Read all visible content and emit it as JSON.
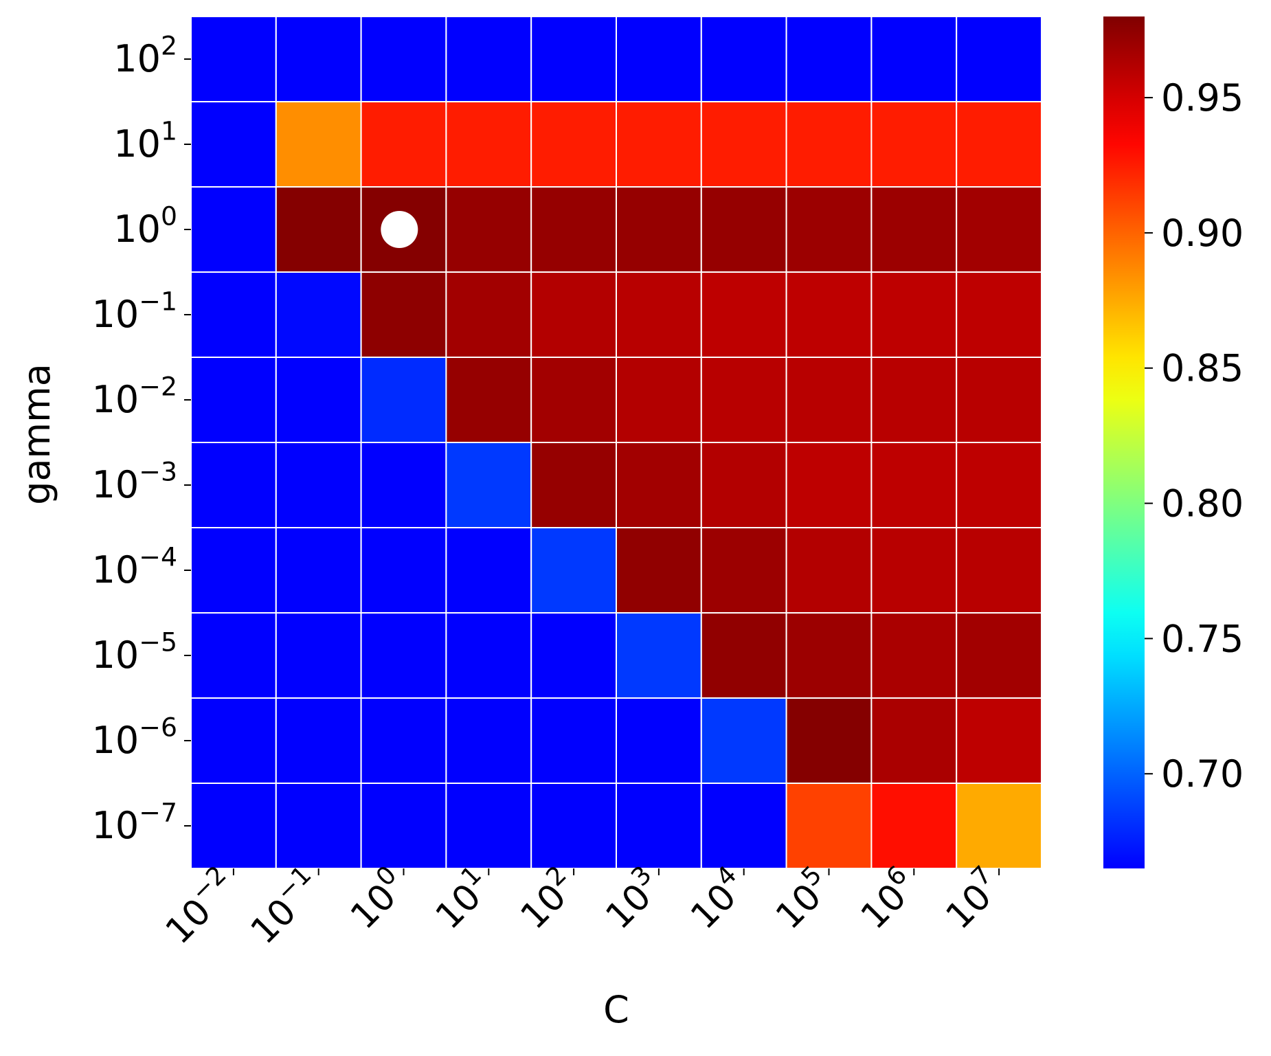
{
  "chart_data": {
    "type": "heatmap",
    "xlabel": "C",
    "ylabel": "gamma",
    "x_categories": [
      {
        "base": "10",
        "exp": "−2"
      },
      {
        "base": "10",
        "exp": "−1"
      },
      {
        "base": "10",
        "exp": "0"
      },
      {
        "base": "10",
        "exp": "1"
      },
      {
        "base": "10",
        "exp": "2"
      },
      {
        "base": "10",
        "exp": "3"
      },
      {
        "base": "10",
        "exp": "4"
      },
      {
        "base": "10",
        "exp": "5"
      },
      {
        "base": "10",
        "exp": "6"
      },
      {
        "base": "10",
        "exp": "7"
      }
    ],
    "y_categories": [
      {
        "base": "10",
        "exp": "2"
      },
      {
        "base": "10",
        "exp": "1"
      },
      {
        "base": "10",
        "exp": "0"
      },
      {
        "base": "10",
        "exp": "−1"
      },
      {
        "base": "10",
        "exp": "−2"
      },
      {
        "base": "10",
        "exp": "−3"
      },
      {
        "base": "10",
        "exp": "−4"
      },
      {
        "base": "10",
        "exp": "−5"
      },
      {
        "base": "10",
        "exp": "−6"
      },
      {
        "base": "10",
        "exp": "−7"
      }
    ],
    "values": [
      [
        0.665,
        0.665,
        0.665,
        0.665,
        0.665,
        0.665,
        0.665,
        0.665,
        0.665,
        0.665
      ],
      [
        0.665,
        0.885,
        0.925,
        0.925,
        0.925,
        0.925,
        0.925,
        0.925,
        0.925,
        0.925
      ],
      [
        0.665,
        0.978,
        0.978,
        0.972,
        0.972,
        0.972,
        0.972,
        0.97,
        0.97,
        0.968
      ],
      [
        0.665,
        0.668,
        0.975,
        0.968,
        0.962,
        0.96,
        0.958,
        0.958,
        0.958,
        0.958
      ],
      [
        0.665,
        0.665,
        0.68,
        0.972,
        0.968,
        0.962,
        0.96,
        0.96,
        0.96,
        0.96
      ],
      [
        0.665,
        0.665,
        0.665,
        0.685,
        0.972,
        0.968,
        0.962,
        0.958,
        0.958,
        0.958
      ],
      [
        0.665,
        0.665,
        0.665,
        0.665,
        0.685,
        0.974,
        0.97,
        0.962,
        0.96,
        0.96
      ],
      [
        0.665,
        0.665,
        0.665,
        0.665,
        0.665,
        0.685,
        0.974,
        0.97,
        0.965,
        0.968
      ],
      [
        0.665,
        0.665,
        0.665,
        0.665,
        0.665,
        0.665,
        0.685,
        0.978,
        0.965,
        0.958
      ],
      [
        0.665,
        0.665,
        0.665,
        0.665,
        0.665,
        0.665,
        0.665,
        0.912,
        0.93,
        0.875
      ]
    ],
    "vmin": 0.665,
    "vmax": 0.98,
    "colormap": "jet",
    "grid_line_color": "#ffffff",
    "colorbar": {
      "ticks": [
        0.7,
        0.75,
        0.8,
        0.85,
        0.9,
        0.95
      ],
      "tick_labels": [
        "0.70",
        "0.75",
        "0.80",
        "0.85",
        "0.90",
        "0.95"
      ],
      "placement": "right"
    },
    "marker": {
      "x": "10^0",
      "y": "10^0",
      "shape": "circle",
      "color": "#ffffff"
    }
  }
}
